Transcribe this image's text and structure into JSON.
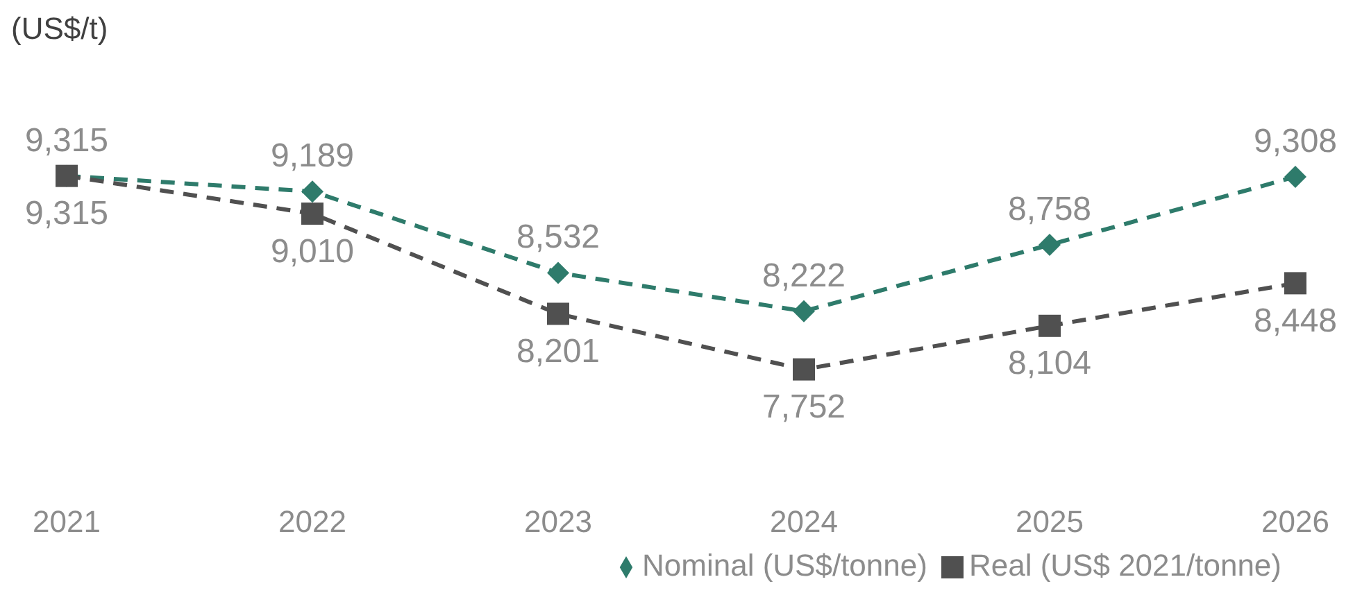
{
  "chart_data": {
    "type": "line",
    "title": "(US$/t)",
    "categories": [
      "2021",
      "2022",
      "2023",
      "2024",
      "2025",
      "2026"
    ],
    "series": [
      {
        "name": "Nominal (US$/tonne)",
        "color": "#2e7b6b",
        "values": [
          9315,
          9189,
          8532,
          8222,
          8758,
          9308
        ],
        "value_labels": [
          "9,315",
          "9,189",
          "8,532",
          "8,222",
          "8,758",
          "9,308"
        ],
        "marker": "diamond",
        "line_style": "dashed"
      },
      {
        "name": "Real (US$ 2021/tonne)",
        "color": "#505050",
        "values": [
          9315,
          9010,
          8201,
          7752,
          8104,
          8448
        ],
        "value_labels": [
          "9,315",
          "9,010",
          "8,201",
          "7,752",
          "8,104",
          "8,448"
        ],
        "marker": "square",
        "line_style": "dashed"
      }
    ],
    "tick_labels": "x",
    "grid": false,
    "legend": "bottom"
  }
}
